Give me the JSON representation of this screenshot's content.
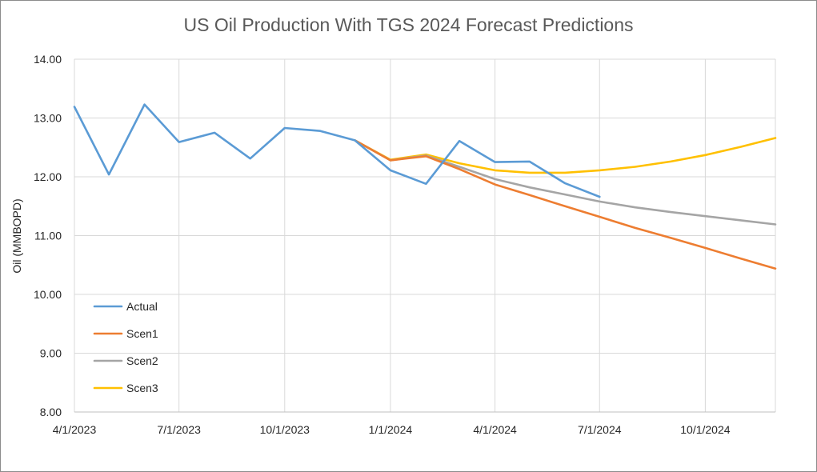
{
  "chart_data": {
    "type": "line",
    "title": "US Oil Production With TGS 2024 Forecast Predictions",
    "xlabel": "",
    "ylabel": "Oil (MMBOPD)",
    "ylim": [
      8.0,
      14.0
    ],
    "yticks": [
      "8.00",
      "9.00",
      "10.00",
      "11.00",
      "12.00",
      "13.00",
      "14.00"
    ],
    "xlim": [
      "2023-04-01",
      "2024-12-01"
    ],
    "xticks": [
      "4/1/2023",
      "7/1/2023",
      "10/1/2023",
      "1/1/2024",
      "4/1/2024",
      "7/1/2024",
      "10/1/2024"
    ],
    "grid": true,
    "legend_position": "left",
    "series": [
      {
        "name": "Actual",
        "color": "#5b9bd5",
        "x": [
          "2023-04-01",
          "2023-05-01",
          "2023-06-01",
          "2023-07-01",
          "2023-08-01",
          "2023-09-01",
          "2023-10-01",
          "2023-11-01",
          "2023-12-01",
          "2024-01-01",
          "2024-02-01",
          "2024-03-01",
          "2024-04-01",
          "2024-05-01",
          "2024-06-01",
          "2024-07-01"
        ],
        "values": [
          13.19,
          12.04,
          13.23,
          12.59,
          12.75,
          12.31,
          12.83,
          12.78,
          12.62,
          12.11,
          11.88,
          12.61,
          12.25,
          12.26,
          11.89,
          11.66
        ]
      },
      {
        "name": "Scen1",
        "color": "#ed7d31",
        "x": [
          "2023-12-01",
          "2024-01-01",
          "2024-02-01",
          "2024-03-01",
          "2024-04-01",
          "2024-05-01",
          "2024-06-01",
          "2024-07-01",
          "2024-08-01",
          "2024-09-01",
          "2024-10-01",
          "2024-11-01",
          "2024-12-01"
        ],
        "values": [
          12.62,
          12.28,
          12.35,
          12.13,
          11.87,
          11.69,
          11.5,
          11.32,
          11.13,
          10.96,
          10.79,
          10.61,
          10.44
        ]
      },
      {
        "name": "Scen2",
        "color": "#a5a5a5",
        "x": [
          "2023-12-01",
          "2024-01-01",
          "2024-02-01",
          "2024-03-01",
          "2024-04-01",
          "2024-05-01",
          "2024-06-01",
          "2024-07-01",
          "2024-08-01",
          "2024-09-01",
          "2024-10-01",
          "2024-11-01",
          "2024-12-01"
        ],
        "values": [
          12.62,
          12.28,
          12.36,
          12.17,
          11.96,
          11.82,
          11.7,
          11.58,
          11.48,
          11.4,
          11.33,
          11.26,
          11.19
        ]
      },
      {
        "name": "Scen3",
        "color": "#ffc000",
        "x": [
          "2023-12-01",
          "2024-01-01",
          "2024-02-01",
          "2024-03-01",
          "2024-04-01",
          "2024-05-01",
          "2024-06-01",
          "2024-07-01",
          "2024-08-01",
          "2024-09-01",
          "2024-10-01",
          "2024-11-01",
          "2024-12-01"
        ],
        "values": [
          12.62,
          12.29,
          12.38,
          12.23,
          12.11,
          12.07,
          12.07,
          12.11,
          12.17,
          12.26,
          12.37,
          12.51,
          12.66
        ]
      }
    ]
  }
}
